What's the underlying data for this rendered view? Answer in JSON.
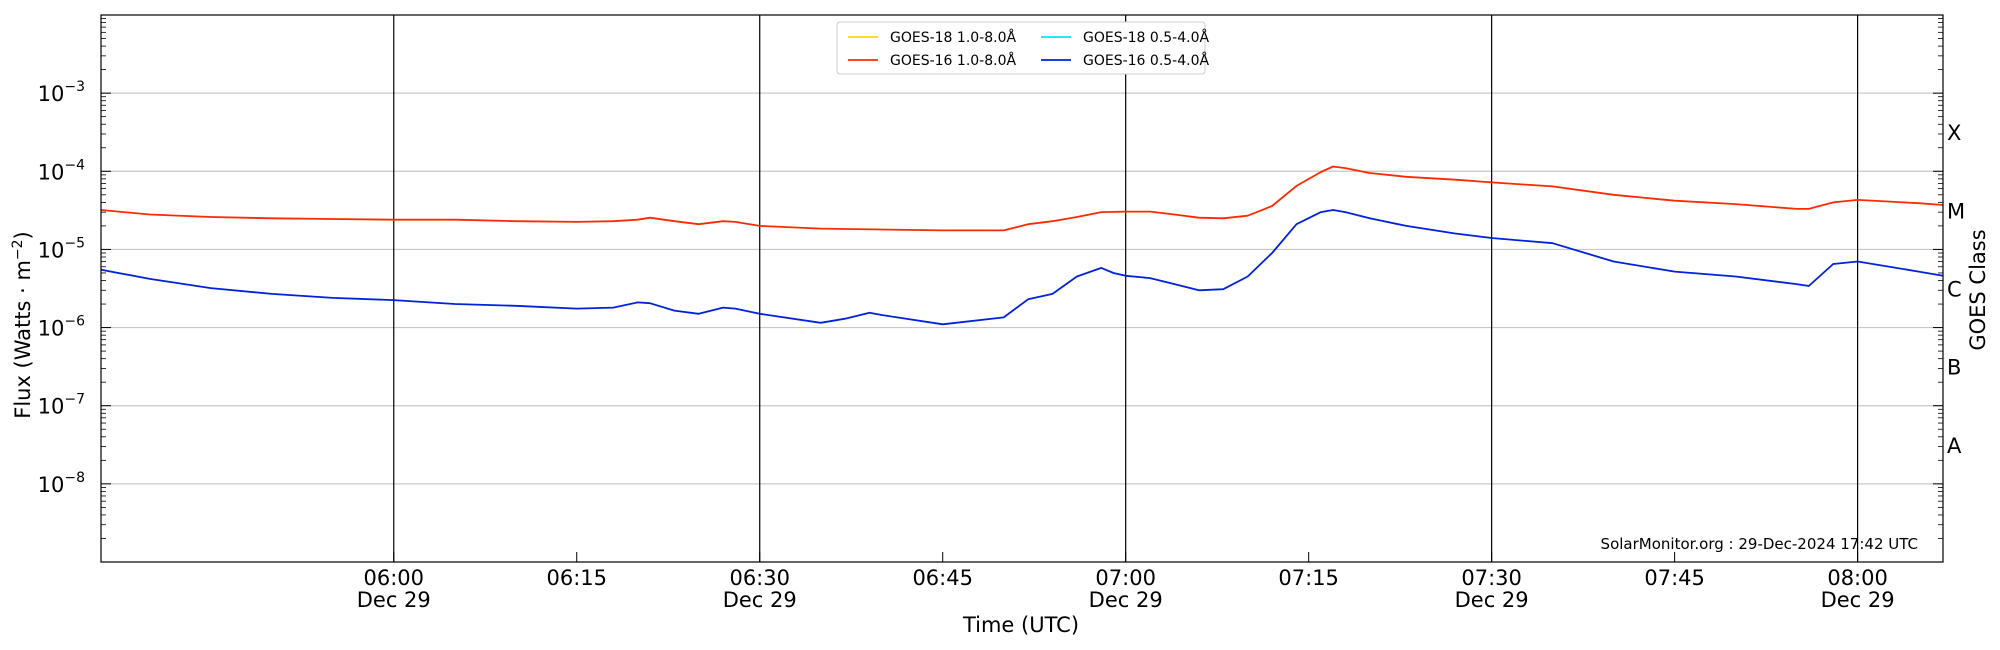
{
  "chart_data": {
    "type": "line",
    "xlabel": "Time (UTC)",
    "ylabel": "Flux (Watts · m",
    "ylabel_sup": "−2",
    "ylabel_close": ")",
    "right_axis_label": "GOES Class",
    "y_scale": "log",
    "ylim": [
      1e-09,
      0.01
    ],
    "x_range": [
      "05:36",
      "08:07"
    ],
    "grid": "horizontal at each decade",
    "legend_position": "top-center",
    "credit": "SolarMonitor.org : 29-Dec-2024 17:42 UTC",
    "y_ticks": [
      {
        "exp": -3,
        "base": "10",
        "sup": "−3"
      },
      {
        "exp": -4,
        "base": "10",
        "sup": "−4"
      },
      {
        "exp": -5,
        "base": "10",
        "sup": "−5"
      },
      {
        "exp": -6,
        "base": "10",
        "sup": "−6"
      },
      {
        "exp": -7,
        "base": "10",
        "sup": "−7"
      },
      {
        "exp": -8,
        "base": "10",
        "sup": "−8"
      }
    ],
    "x_ticks": [
      {
        "time": "06:00",
        "date": "Dec 29"
      },
      {
        "time": "06:15",
        "date": ""
      },
      {
        "time": "06:30",
        "date": "Dec 29"
      },
      {
        "time": "06:45",
        "date": ""
      },
      {
        "time": "07:00",
        "date": "Dec 29"
      },
      {
        "time": "07:15",
        "date": ""
      },
      {
        "time": "07:30",
        "date": "Dec 29"
      },
      {
        "time": "07:45",
        "date": ""
      },
      {
        "time": "08:00",
        "date": "Dec 29"
      }
    ],
    "vertical_markers": [
      "06:00",
      "06:30",
      "07:00",
      "07:30",
      "08:00"
    ],
    "classes": [
      {
        "label": "X",
        "flux": 0.0001
      },
      {
        "label": "M",
        "flux": 1e-05
      },
      {
        "label": "C",
        "flux": 1e-06
      },
      {
        "label": "B",
        "flux": 1e-07
      },
      {
        "label": "A",
        "flux": 1e-08
      }
    ],
    "legend": [
      {
        "name": "GOES-18 1.0-8.0Å",
        "color": "#ffd700"
      },
      {
        "name": "GOES-18 0.5-4.0Å",
        "color": "#00e5ff"
      },
      {
        "name": "GOES-16 1.0-8.0Å",
        "color": "#ff2a00"
      },
      {
        "name": "GOES-16 0.5-4.0Å",
        "color": "#0022dd"
      }
    ],
    "series": [
      {
        "name": "GOES-16 1.0-8.0Å",
        "color": "#ff2a00",
        "x": [
          "05:36",
          "05:40",
          "05:45",
          "05:50",
          "05:55",
          "06:00",
          "06:05",
          "06:10",
          "06:15",
          "06:18",
          "06:20",
          "06:21",
          "06:23",
          "06:25",
          "06:27",
          "06:28",
          "06:30",
          "06:35",
          "06:40",
          "06:45",
          "06:50",
          "06:52",
          "06:54",
          "06:56",
          "06:58",
          "07:00",
          "07:02",
          "07:04",
          "07:06",
          "07:08",
          "07:10",
          "07:12",
          "07:14",
          "07:16",
          "07:17",
          "07:18",
          "07:20",
          "07:23",
          "07:27",
          "07:30",
          "07:35",
          "07:40",
          "07:45",
          "07:50",
          "07:55",
          "07:56",
          "07:58",
          "08:00",
          "08:05",
          "08:07"
        ],
        "y": [
          3.2e-05,
          2.8e-05,
          2.6e-05,
          2.5e-05,
          2.45e-05,
          2.4e-05,
          2.4e-05,
          2.3e-05,
          2.25e-05,
          2.3e-05,
          2.4e-05,
          2.55e-05,
          2.3e-05,
          2.1e-05,
          2.3e-05,
          2.25e-05,
          2e-05,
          1.85e-05,
          1.8e-05,
          1.75e-05,
          1.75e-05,
          2.1e-05,
          2.3e-05,
          2.6e-05,
          3e-05,
          3.05e-05,
          3.05e-05,
          2.8e-05,
          2.55e-05,
          2.5e-05,
          2.7e-05,
          3.6e-05,
          6.5e-05,
          9.8e-05,
          0.000115,
          0.00011,
          9.5e-05,
          8.5e-05,
          7.8e-05,
          7.2e-05,
          6.4e-05,
          5e-05,
          4.2e-05,
          3.8e-05,
          3.3e-05,
          3.3e-05,
          4e-05,
          4.3e-05,
          3.9e-05,
          3.7e-05
        ]
      },
      {
        "name": "GOES-16 0.5-4.0Å",
        "color": "#0022dd",
        "x": [
          "05:36",
          "05:40",
          "05:45",
          "05:50",
          "05:55",
          "06:00",
          "06:05",
          "06:10",
          "06:15",
          "06:18",
          "06:20",
          "06:21",
          "06:23",
          "06:25",
          "06:27",
          "06:28",
          "06:30",
          "06:35",
          "06:37",
          "06:39",
          "06:40",
          "06:45",
          "06:50",
          "06:52",
          "06:54",
          "06:56",
          "06:58",
          "06:59",
          "07:00",
          "07:02",
          "07:04",
          "07:06",
          "07:08",
          "07:10",
          "07:12",
          "07:14",
          "07:16",
          "07:17",
          "07:18",
          "07:20",
          "07:23",
          "07:27",
          "07:30",
          "07:35",
          "07:40",
          "07:45",
          "07:50",
          "07:55",
          "07:56",
          "07:58",
          "08:00",
          "08:05",
          "08:07"
        ],
        "y": [
          5.5e-06,
          4.2e-06,
          3.2e-06,
          2.7e-06,
          2.4e-06,
          2.25e-06,
          2e-06,
          1.9e-06,
          1.75e-06,
          1.8e-06,
          2.1e-06,
          2.05e-06,
          1.65e-06,
          1.5e-06,
          1.8e-06,
          1.75e-06,
          1.5e-06,
          1.15e-06,
          1.3e-06,
          1.55e-06,
          1.45e-06,
          1.1e-06,
          1.35e-06,
          2.3e-06,
          2.7e-06,
          4.5e-06,
          5.8e-06,
          5e-06,
          4.6e-06,
          4.3e-06,
          3.6e-06,
          3e-06,
          3.1e-06,
          4.5e-06,
          9e-06,
          2.1e-05,
          3e-05,
          3.2e-05,
          3e-05,
          2.5e-05,
          2e-05,
          1.6e-05,
          1.4e-05,
          1.2e-05,
          7e-06,
          5.2e-06,
          4.5e-06,
          3.6e-06,
          3.4e-06,
          6.5e-06,
          7e-06,
          5.2e-06,
          4.6e-06
        ]
      }
    ]
  }
}
